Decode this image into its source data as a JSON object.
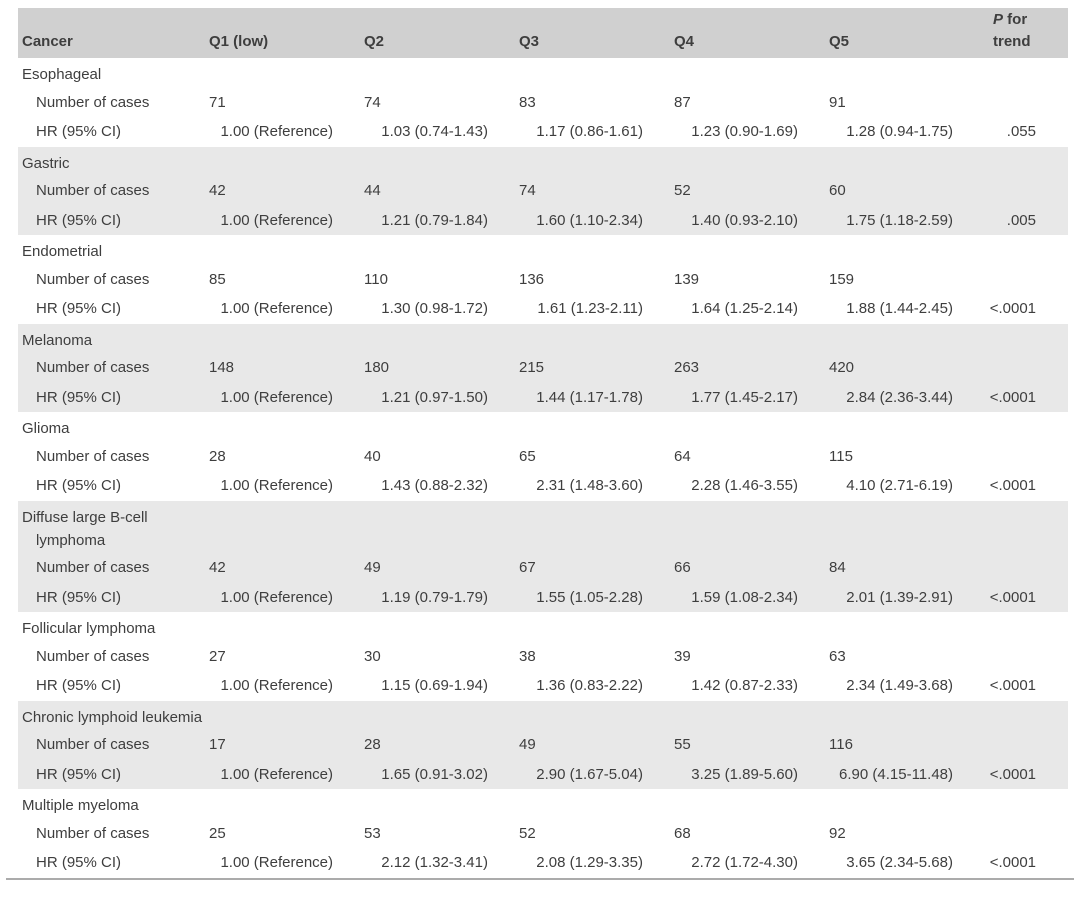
{
  "table": {
    "colors": {
      "header_bg": "#d0d0d0",
      "stripe_bg": "#e8e8e8",
      "text": "#3e3e3e",
      "rule": "#ababab"
    },
    "header": {
      "cancer": "Cancer",
      "quintiles": [
        "Q1 (low)",
        "Q2",
        "Q3",
        "Q4",
        "Q5"
      ],
      "p_for_trend": "P for trend"
    },
    "row_labels": {
      "cases": "Number of cases",
      "hr": "HR (95% CI)"
    },
    "sections": [
      {
        "name": "Esophageal",
        "cases": [
          "71",
          "74",
          "83",
          "87",
          "91"
        ],
        "hr": [
          "1.00 (Reference)",
          "1.03 (0.74-1.43)",
          "1.17 (0.86-1.61)",
          "1.23 (0.90-1.69)",
          "1.28 (0.94-1.75)"
        ],
        "p": ".055"
      },
      {
        "name": "Gastric",
        "cases": [
          "42",
          "44",
          "74",
          "52",
          "60"
        ],
        "hr": [
          "1.00 (Reference)",
          "1.21 (0.79-1.84)",
          "1.60 (1.10-2.34)",
          "1.40 (0.93-2.10)",
          "1.75 (1.18-2.59)"
        ],
        "p": ".005"
      },
      {
        "name": "Endometrial",
        "cases": [
          "85",
          "110",
          "136",
          "139",
          "159"
        ],
        "hr": [
          "1.00 (Reference)",
          "1.30 (0.98-1.72)",
          "1.61 (1.23-2.11)",
          "1.64 (1.25-2.14)",
          "1.88 (1.44-2.45)"
        ],
        "p": "<.0001"
      },
      {
        "name": "Melanoma",
        "cases": [
          "148",
          "180",
          "215",
          "263",
          "420"
        ],
        "hr": [
          "1.00 (Reference)",
          "1.21 (0.97-1.50)",
          "1.44 (1.17-1.78)",
          "1.77 (1.45-2.17)",
          "2.84 (2.36-3.44)"
        ],
        "p": "<.0001"
      },
      {
        "name": "Glioma",
        "cases": [
          "28",
          "40",
          "65",
          "64",
          "115"
        ],
        "hr": [
          "1.00 (Reference)",
          "1.43 (0.88-2.32)",
          "2.31 (1.48-3.60)",
          "2.28 (1.46-3.55)",
          "4.10 (2.71-6.19)"
        ],
        "p": "<.0001"
      },
      {
        "name": "Diffuse large B-cell lymphoma",
        "cases": [
          "42",
          "49",
          "67",
          "66",
          "84"
        ],
        "hr": [
          "1.00 (Reference)",
          "1.19 (0.79-1.79)",
          "1.55 (1.05-2.28)",
          "1.59 (1.08-2.34)",
          "2.01 (1.39-2.91)"
        ],
        "p": "<.0001"
      },
      {
        "name": "Follicular lymphoma",
        "cases": [
          "27",
          "30",
          "38",
          "39",
          "63"
        ],
        "hr": [
          "1.00 (Reference)",
          "1.15 (0.69-1.94)",
          "1.36 (0.83-2.22)",
          "1.42 (0.87-2.33)",
          "2.34 (1.49-3.68)"
        ],
        "p": "<.0001"
      },
      {
        "name": "Chronic lymphoid leukemia",
        "cases": [
          "17",
          "28",
          "49",
          "55",
          "116"
        ],
        "hr": [
          "1.00 (Reference)",
          "1.65 (0.91-3.02)",
          "2.90 (1.67-5.04)",
          "3.25 (1.89-5.60)",
          "6.90 (4.15-11.48)"
        ],
        "p": "<.0001"
      },
      {
        "name": "Multiple myeloma",
        "cases": [
          "25",
          "53",
          "52",
          "68",
          "92"
        ],
        "hr": [
          "1.00 (Reference)",
          "2.12 (1.32-3.41)",
          "2.08 (1.29-3.35)",
          "2.72 (1.72-4.30)",
          "3.65 (2.34-5.68)"
        ],
        "p": "<.0001"
      }
    ]
  }
}
